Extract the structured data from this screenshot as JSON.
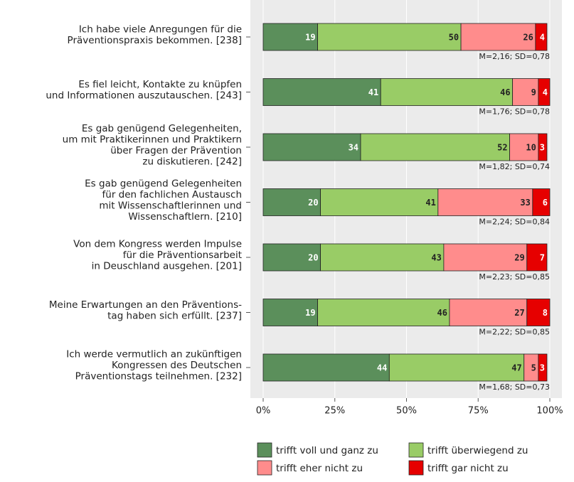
{
  "chart_data": {
    "type": "stacked_barh",
    "categories": [
      "Ich habe viele Anregungen für die\nPräventionspraxis bekommen. [238]",
      "Es fiel leicht, Kontakte zu knüpfen\nund Informationen auszutauschen. [243]",
      "Es gab genügend Gelegenheiten,\num mit Praktikerinnen und Praktikern\nüber Fragen der Prävention\nzu diskutieren. [242]",
      "Es gab genügend Gelegenheiten\nfür den fachlichen Austausch\nmit Wissenschaftlerinnen und\nWissenschaftlern. [210]",
      "Von dem Kongress werden Impulse\nfür die Präventionsarbeit\nin Deuschland ausgehen. [201]",
      "Meine Erwartungen an den Präventions-\ntag haben sich erfüllt. [237]",
      "Ich werde vermutlich an zukünftigen\nKongressen des Deutschen\nPräventionstags teilnehmen. [232]"
    ],
    "series": [
      {
        "name": "trifft voll und ganz zu",
        "color": "#5b8f5b",
        "label_color": "#ffffff",
        "values": [
          19,
          41,
          34,
          20,
          20,
          19,
          44
        ]
      },
      {
        "name": "trifft überwiegend zu",
        "color": "#99cc66",
        "label_color": "#222222",
        "values": [
          50,
          46,
          52,
          41,
          43,
          46,
          47
        ]
      },
      {
        "name": "trifft eher nicht zu",
        "color": "#ff8c8c",
        "label_color": "#222222",
        "values": [
          26,
          9,
          10,
          33,
          29,
          27,
          5
        ]
      },
      {
        "name": "trifft gar nicht zu",
        "color": "#e60000",
        "label_color": "#ffffff",
        "values": [
          4,
          4,
          3,
          6,
          7,
          8,
          3
        ]
      }
    ],
    "annotations": [
      "M=2,16; SD=0,78",
      "M=1,76; SD=0,78",
      "M=1,82; SD=0,74",
      "M=2,24; SD=0,84",
      "M=2,23; SD=0,85",
      "M=2,22; SD=0,85",
      "M=1,68; SD=0,73"
    ],
    "xlim": [
      0,
      100
    ],
    "xticks": [
      {
        "value": 0,
        "label": "0%"
      },
      {
        "value": 25,
        "label": "25%"
      },
      {
        "value": 50,
        "label": "50%"
      },
      {
        "value": 75,
        "label": "75%"
      },
      {
        "value": 100,
        "label": "100%"
      }
    ],
    "grid": true
  }
}
